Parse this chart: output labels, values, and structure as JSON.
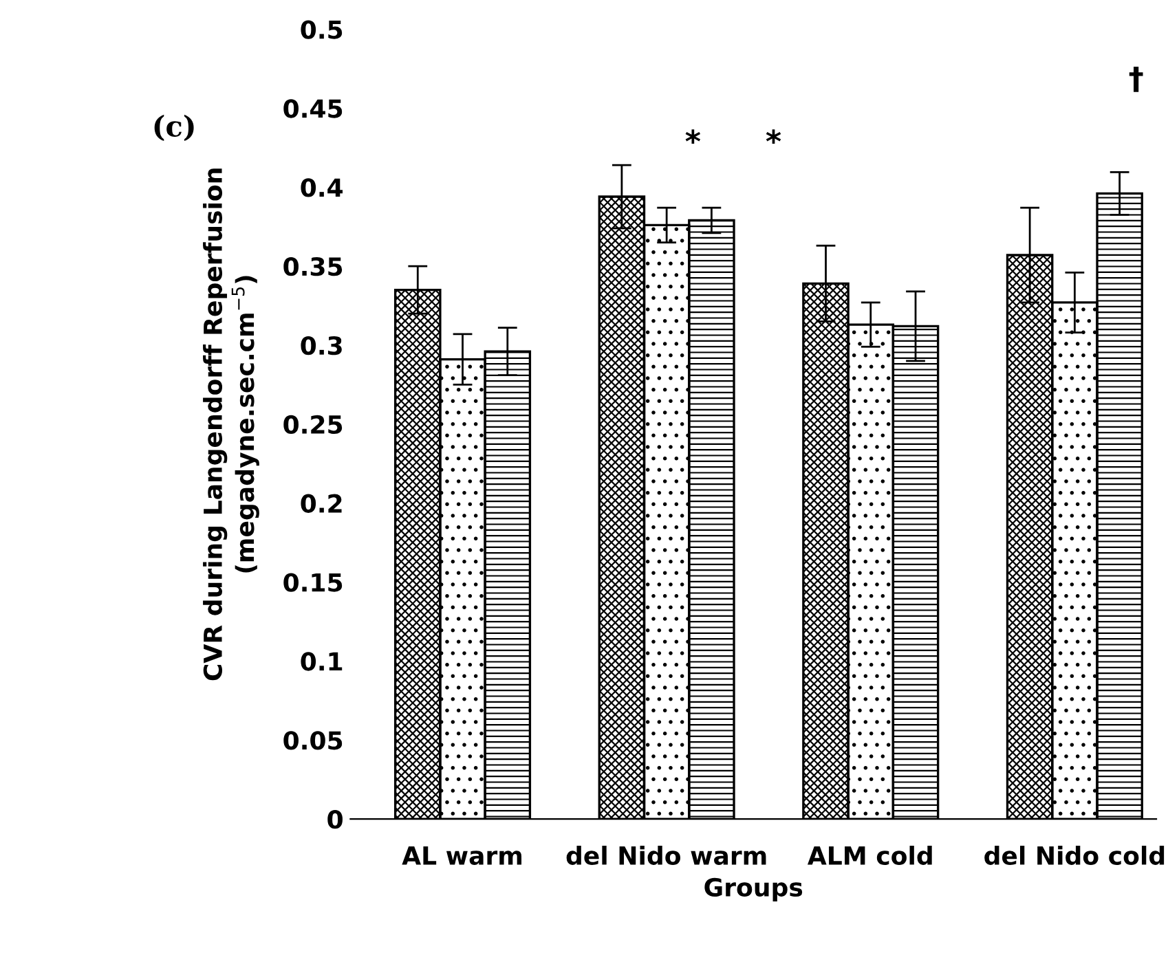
{
  "chart_data": {
    "type": "bar",
    "ylabel": "CVR during Langendorff Reperfusion\n(megadyne.sec.cm$^{−5}$)",
    "xlabel": "Groups",
    "categories": [
      "AL warm",
      "del Nido warm",
      "ALM cold",
      "del Nido cold"
    ],
    "series": [
      {
        "color": "#000000",
        "values": [
          0.335,
          0.394,
          0.339,
          0.357
        ],
        "errors": [
          0.015,
          0.02,
          0.024,
          0.03
        ]
      },
      {
        "color": "#000000",
        "values": [
          0.291,
          0.376,
          0.313,
          0.327
        ],
        "errors": [
          0.016,
          0.011,
          0.014,
          0.019
        ]
      },
      {
        "color": "#000000",
        "values": [
          0.296,
          0.379,
          0.312,
          0.396
        ],
        "errors": [
          0.015,
          0.008,
          0.022,
          0.0135
        ]
      }
    ],
    "ylim": [
      0,
      0.5
    ],
    "yticks": [
      0,
      0.05,
      0.1,
      0.15,
      0.2,
      0.25,
      0.3,
      0.35,
      0.4,
      0.45,
      0.5
    ],
    "grid": false,
    "legend": false,
    "annotations": [
      "(c)",
      "*",
      "*",
      "†"
    ]
  }
}
